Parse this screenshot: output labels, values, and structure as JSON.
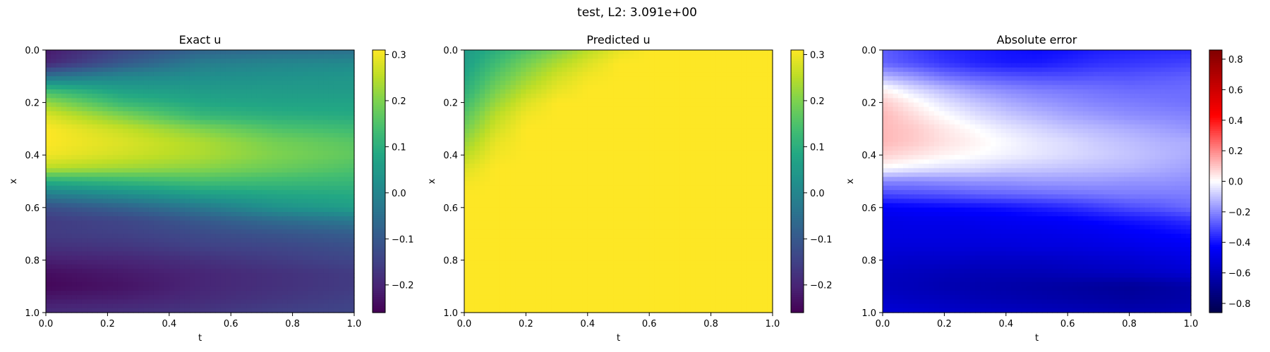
{
  "figure": {
    "suptitle": "test, L2: 3.091e+00"
  },
  "chart_data": [
    {
      "type": "heatmap",
      "title": "Exact u",
      "xlabel": "t",
      "ylabel": "x",
      "xlim": [
        0.0,
        1.0
      ],
      "ylim": [
        1.0,
        0.0
      ],
      "x_ticks": [
        "0.0",
        "0.2",
        "0.4",
        "0.6",
        "0.8",
        "1.0"
      ],
      "y_ticks": [
        "0.0",
        "0.2",
        "0.4",
        "0.6",
        "0.8",
        "1.0"
      ],
      "colormap": "viridis",
      "colorbar": {
        "range": [
          -0.26,
          0.31
        ],
        "ticks": [
          -0.2,
          -0.1,
          0.0,
          0.1,
          0.2,
          0.3
        ],
        "tick_labels": [
          "−0.2",
          "−0.1",
          "0.0",
          "0.1",
          "0.2",
          "0.3"
        ]
      },
      "grid": {
        "x": [
          0.0,
          0.25,
          0.5,
          0.75,
          1.0
        ],
        "y": [
          0.0,
          0.05,
          0.1,
          0.15,
          0.2,
          0.25,
          0.3,
          0.35,
          0.4,
          0.45,
          0.5,
          0.55,
          0.6,
          0.65,
          0.7,
          0.75,
          0.8,
          0.85,
          0.9,
          0.95,
          1.0
        ],
        "values": [
          [
            -0.22,
            -0.14,
            -0.08,
            -0.06,
            -0.05
          ],
          [
            -0.2,
            -0.1,
            -0.02,
            0.0,
            0.01
          ],
          [
            -0.05,
            0.0,
            0.02,
            0.03,
            0.04
          ],
          [
            0.12,
            0.06,
            0.05,
            0.05,
            0.05
          ],
          [
            0.22,
            0.12,
            0.08,
            0.07,
            0.07
          ],
          [
            0.28,
            0.2,
            0.12,
            0.1,
            0.09
          ],
          [
            0.31,
            0.26,
            0.2,
            0.15,
            0.13
          ],
          [
            0.31,
            0.28,
            0.24,
            0.19,
            0.16
          ],
          [
            0.3,
            0.27,
            0.24,
            0.2,
            0.17
          ],
          [
            0.25,
            0.23,
            0.21,
            0.18,
            0.15
          ],
          [
            0.1,
            0.12,
            0.14,
            0.13,
            0.12
          ],
          [
            -0.02,
            0.02,
            0.06,
            0.08,
            0.09
          ],
          [
            -0.12,
            -0.08,
            -0.03,
            0.03,
            0.06
          ],
          [
            -0.16,
            -0.14,
            -0.1,
            -0.06,
            -0.03
          ],
          [
            -0.16,
            -0.15,
            -0.13,
            -0.11,
            -0.09
          ],
          [
            -0.18,
            -0.17,
            -0.15,
            -0.14,
            -0.12
          ],
          [
            -0.21,
            -0.2,
            -0.18,
            -0.16,
            -0.14
          ],
          [
            -0.24,
            -0.22,
            -0.2,
            -0.18,
            -0.16
          ],
          [
            -0.25,
            -0.23,
            -0.2,
            -0.18,
            -0.16
          ],
          [
            -0.22,
            -0.21,
            -0.19,
            -0.17,
            -0.15
          ],
          [
            -0.19,
            -0.18,
            -0.17,
            -0.15,
            -0.14
          ]
        ]
      }
    },
    {
      "type": "heatmap",
      "title": "Predicted u",
      "xlabel": "t",
      "ylabel": "x",
      "xlim": [
        0.0,
        1.0
      ],
      "ylim": [
        1.0,
        0.0
      ],
      "x_ticks": [
        "0.0",
        "0.2",
        "0.4",
        "0.6",
        "0.8",
        "1.0"
      ],
      "y_ticks": [
        "0.0",
        "0.2",
        "0.4",
        "0.6",
        "0.8",
        "1.0"
      ],
      "colormap": "viridis",
      "colorbar": {
        "range": [
          -0.26,
          0.31
        ],
        "ticks": [
          -0.2,
          -0.1,
          0.0,
          0.1,
          0.2,
          0.3
        ],
        "tick_labels": [
          "−0.2",
          "−0.1",
          "0.0",
          "0.1",
          "0.2",
          "0.3"
        ]
      },
      "grid": {
        "x": [
          0.0,
          0.1,
          0.2,
          0.3,
          0.4,
          0.5,
          0.6,
          0.7,
          0.8,
          0.9,
          1.0
        ],
        "y": [
          0.0,
          0.05,
          0.1,
          0.15,
          0.2,
          0.25,
          0.3,
          0.35,
          0.4,
          0.45,
          0.5,
          0.55,
          0.6,
          0.65,
          0.7,
          0.75,
          0.8,
          0.85,
          0.9,
          0.95,
          1.0
        ],
        "values": [
          [
            0.05,
            0.1,
            0.15,
            0.2,
            0.25,
            0.29,
            0.31,
            0.31,
            0.31,
            0.31,
            0.31
          ],
          [
            0.06,
            0.13,
            0.19,
            0.24,
            0.28,
            0.31,
            0.31,
            0.31,
            0.31,
            0.31,
            0.31
          ],
          [
            0.08,
            0.16,
            0.22,
            0.27,
            0.3,
            0.31,
            0.31,
            0.31,
            0.31,
            0.31,
            0.31
          ],
          [
            0.1,
            0.19,
            0.25,
            0.29,
            0.31,
            0.31,
            0.31,
            0.31,
            0.31,
            0.31,
            0.31
          ],
          [
            0.13,
            0.22,
            0.28,
            0.31,
            0.31,
            0.31,
            0.31,
            0.31,
            0.31,
            0.31,
            0.31
          ],
          [
            0.16,
            0.25,
            0.3,
            0.31,
            0.31,
            0.31,
            0.31,
            0.31,
            0.31,
            0.31,
            0.31
          ],
          [
            0.19,
            0.27,
            0.31,
            0.31,
            0.31,
            0.31,
            0.31,
            0.31,
            0.31,
            0.31,
            0.31
          ],
          [
            0.22,
            0.29,
            0.31,
            0.31,
            0.31,
            0.31,
            0.31,
            0.31,
            0.31,
            0.31,
            0.31
          ],
          [
            0.25,
            0.3,
            0.31,
            0.31,
            0.31,
            0.31,
            0.31,
            0.31,
            0.31,
            0.31,
            0.31
          ],
          [
            0.28,
            0.31,
            0.31,
            0.31,
            0.31,
            0.31,
            0.31,
            0.31,
            0.31,
            0.31,
            0.31
          ],
          [
            0.3,
            0.31,
            0.31,
            0.31,
            0.31,
            0.31,
            0.31,
            0.31,
            0.31,
            0.31,
            0.31
          ],
          [
            0.31,
            0.31,
            0.31,
            0.31,
            0.31,
            0.31,
            0.31,
            0.31,
            0.31,
            0.31,
            0.31
          ],
          [
            0.31,
            0.31,
            0.31,
            0.31,
            0.31,
            0.31,
            0.31,
            0.31,
            0.31,
            0.31,
            0.31
          ],
          [
            0.31,
            0.31,
            0.31,
            0.31,
            0.31,
            0.31,
            0.31,
            0.31,
            0.31,
            0.31,
            0.31
          ],
          [
            0.31,
            0.31,
            0.31,
            0.31,
            0.31,
            0.31,
            0.31,
            0.31,
            0.31,
            0.31,
            0.31
          ],
          [
            0.31,
            0.31,
            0.31,
            0.31,
            0.31,
            0.31,
            0.31,
            0.31,
            0.31,
            0.31,
            0.31
          ],
          [
            0.31,
            0.31,
            0.31,
            0.31,
            0.31,
            0.31,
            0.31,
            0.31,
            0.31,
            0.31,
            0.31
          ],
          [
            0.31,
            0.31,
            0.31,
            0.31,
            0.31,
            0.31,
            0.31,
            0.31,
            0.31,
            0.31,
            0.31
          ],
          [
            0.31,
            0.31,
            0.31,
            0.31,
            0.31,
            0.31,
            0.31,
            0.31,
            0.31,
            0.31,
            0.31
          ],
          [
            0.31,
            0.31,
            0.31,
            0.31,
            0.31,
            0.31,
            0.31,
            0.31,
            0.31,
            0.31,
            0.31
          ],
          [
            0.31,
            0.31,
            0.31,
            0.31,
            0.31,
            0.31,
            0.31,
            0.31,
            0.31,
            0.31,
            0.31
          ]
        ]
      }
    },
    {
      "type": "heatmap",
      "title": "Absolute error",
      "xlabel": "t",
      "ylabel": "x",
      "xlim": [
        0.0,
        1.0
      ],
      "ylim": [
        1.0,
        0.0
      ],
      "x_ticks": [
        "0.0",
        "0.2",
        "0.4",
        "0.6",
        "0.8",
        "1.0"
      ],
      "y_ticks": [
        "0.0",
        "0.2",
        "0.4",
        "0.6",
        "0.8",
        "1.0"
      ],
      "colormap": "seismic",
      "colorbar": {
        "range": [
          -0.86,
          0.86
        ],
        "ticks": [
          -0.8,
          -0.6,
          -0.4,
          -0.2,
          0.0,
          0.2,
          0.4,
          0.6,
          0.8
        ],
        "tick_labels": [
          "−0.8",
          "−0.6",
          "−0.4",
          "−0.2",
          "0.0",
          "0.2",
          "0.4",
          "0.6",
          "0.8"
        ]
      },
      "grid": {
        "x": [
          0.0,
          0.1,
          0.2,
          0.3,
          0.4,
          0.5,
          0.6,
          0.7,
          0.8,
          0.9,
          1.0
        ],
        "y": [
          0.0,
          0.05,
          0.1,
          0.15,
          0.2,
          0.25,
          0.3,
          0.35,
          0.4,
          0.45,
          0.5,
          0.55,
          0.6,
          0.65,
          0.7,
          0.75,
          0.8,
          0.85,
          0.9,
          0.95,
          1.0
        ],
        "values": [
          [
            -0.27,
            -0.32,
            -0.36,
            -0.38,
            -0.4,
            -0.41,
            -0.4,
            -0.38,
            -0.37,
            -0.36,
            -0.36
          ],
          [
            -0.26,
            -0.3,
            -0.34,
            -0.37,
            -0.39,
            -0.39,
            -0.37,
            -0.35,
            -0.34,
            -0.33,
            -0.32
          ],
          [
            -0.13,
            -0.18,
            -0.24,
            -0.27,
            -0.29,
            -0.3,
            -0.3,
            -0.29,
            -0.29,
            -0.28,
            -0.27
          ],
          [
            0.02,
            -0.06,
            -0.12,
            -0.17,
            -0.2,
            -0.22,
            -0.23,
            -0.24,
            -0.25,
            -0.25,
            -0.25
          ],
          [
            0.09,
            0.02,
            -0.05,
            -0.1,
            -0.14,
            -0.17,
            -0.19,
            -0.21,
            -0.22,
            -0.23,
            -0.24
          ],
          [
            0.12,
            0.06,
            0.0,
            -0.05,
            -0.09,
            -0.12,
            -0.15,
            -0.17,
            -0.19,
            -0.2,
            -0.21
          ],
          [
            0.12,
            0.09,
            0.04,
            0.0,
            -0.04,
            -0.07,
            -0.1,
            -0.12,
            -0.14,
            -0.16,
            -0.18
          ],
          [
            0.12,
            0.09,
            0.05,
            0.02,
            -0.01,
            -0.04,
            -0.06,
            -0.09,
            -0.11,
            -0.13,
            -0.14
          ],
          [
            0.08,
            0.05,
            0.02,
            0.0,
            -0.02,
            -0.04,
            -0.06,
            -0.08,
            -0.1,
            -0.12,
            -0.14
          ],
          [
            0.0,
            -0.03,
            -0.05,
            -0.06,
            -0.08,
            -0.09,
            -0.1,
            -0.11,
            -0.12,
            -0.14,
            -0.16
          ],
          [
            -0.2,
            -0.2,
            -0.19,
            -0.18,
            -0.18,
            -0.17,
            -0.17,
            -0.17,
            -0.18,
            -0.18,
            -0.19
          ],
          [
            -0.31,
            -0.3,
            -0.29,
            -0.27,
            -0.26,
            -0.25,
            -0.24,
            -0.23,
            -0.22,
            -0.22,
            -0.22
          ],
          [
            -0.44,
            -0.43,
            -0.42,
            -0.41,
            -0.4,
            -0.38,
            -0.36,
            -0.33,
            -0.3,
            -0.28,
            -0.25
          ],
          [
            -0.49,
            -0.48,
            -0.48,
            -0.47,
            -0.46,
            -0.45,
            -0.44,
            -0.42,
            -0.4,
            -0.38,
            -0.35
          ],
          [
            -0.5,
            -0.5,
            -0.5,
            -0.5,
            -0.49,
            -0.49,
            -0.48,
            -0.47,
            -0.45,
            -0.43,
            -0.41
          ],
          [
            -0.52,
            -0.52,
            -0.52,
            -0.52,
            -0.52,
            -0.51,
            -0.51,
            -0.5,
            -0.49,
            -0.47,
            -0.46
          ],
          [
            -0.55,
            -0.56,
            -0.56,
            -0.57,
            -0.57,
            -0.57,
            -0.56,
            -0.55,
            -0.54,
            -0.52,
            -0.5
          ],
          [
            -0.58,
            -0.59,
            -0.6,
            -0.61,
            -0.61,
            -0.61,
            -0.6,
            -0.59,
            -0.58,
            -0.56,
            -0.54
          ],
          [
            -0.59,
            -0.6,
            -0.62,
            -0.63,
            -0.64,
            -0.65,
            -0.66,
            -0.67,
            -0.68,
            -0.66,
            -0.64
          ],
          [
            -0.56,
            -0.58,
            -0.59,
            -0.61,
            -0.62,
            -0.63,
            -0.64,
            -0.65,
            -0.66,
            -0.65,
            -0.64
          ],
          [
            -0.53,
            -0.54,
            -0.56,
            -0.57,
            -0.58,
            -0.59,
            -0.6,
            -0.61,
            -0.62,
            -0.62,
            -0.61
          ]
        ]
      }
    }
  ]
}
